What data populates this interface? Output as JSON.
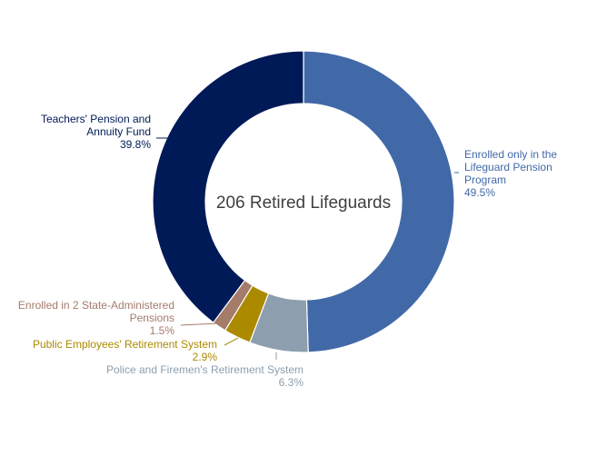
{
  "chart_data": {
    "type": "pie",
    "variant": "donut",
    "center_label": "206 Retired Lifeguards",
    "legend": "none",
    "slices": [
      {
        "name": "Enrolled only in the Lifeguard Pension Program",
        "label_lines": [
          "Enrolled only in the",
          "Lifeguard Pension",
          "Program"
        ],
        "value": 49.5,
        "value_label": "49.5%",
        "color": "#4169a8"
      },
      {
        "name": "Police and Firemen's Retirement System",
        "label_lines": [
          "Police and Firemen's Retirement System"
        ],
        "value": 6.3,
        "value_label": "6.3%",
        "color": "#8d9fae"
      },
      {
        "name": "Public Employees' Retirement System",
        "label_lines": [
          "Public Employees' Retirement System"
        ],
        "value": 2.9,
        "value_label": "2.9%",
        "color": "#ab8a00"
      },
      {
        "name": "Enrolled in 2 State-Administered Pensions",
        "label_lines": [
          "Enrolled in 2 State-Administered",
          "Pensions"
        ],
        "value": 1.5,
        "value_label": "1.5%",
        "color": "#a57b6a"
      },
      {
        "name": "Teachers' Pension and Annuity Fund",
        "label_lines": [
          "Teachers' Pension and",
          "Annuity Fund"
        ],
        "value": 39.8,
        "value_label": "39.8%",
        "color": "#001a57"
      }
    ]
  }
}
